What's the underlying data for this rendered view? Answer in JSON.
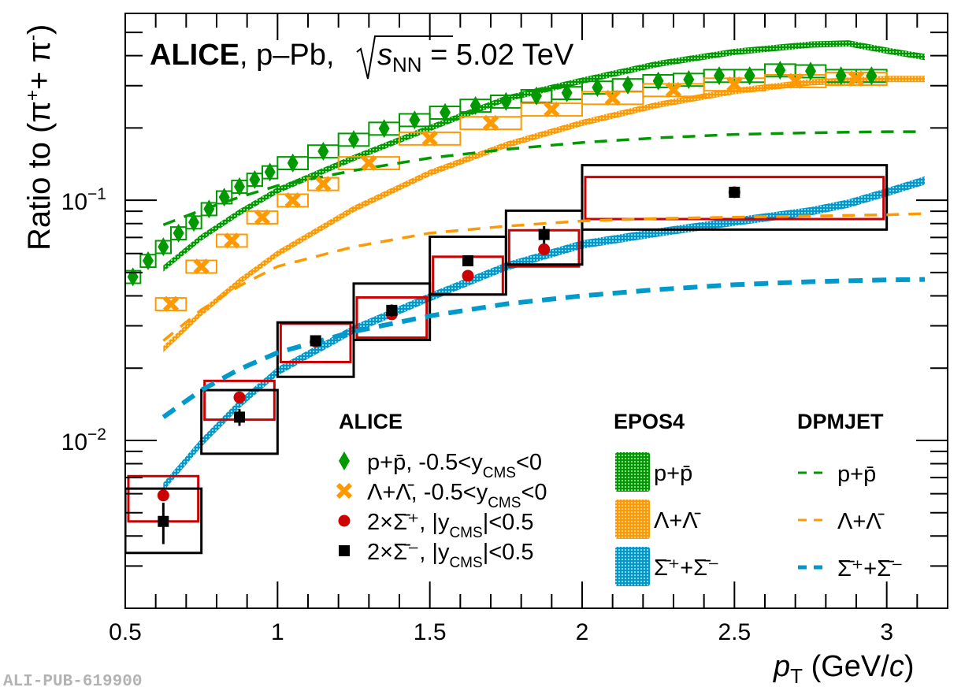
{
  "chart_data": {
    "type": "scatter",
    "title_bold": "ALICE",
    "title_rest": ", p–Pb, ",
    "title_energy_symbol": "s",
    "title_energy_sub": "NN",
    "title_energy_value": " = 5.02 TeV",
    "xlabel_main": "p",
    "xlabel_sub": "T",
    "xlabel_unit": " (GeV/",
    "xlabel_unit_c": "c",
    "xlabel_close": ")",
    "ylabel": "Ratio to (π",
    "ylabel_sup_plus": "+",
    "ylabel_mid": "+ π",
    "ylabel_sup_minus": "-",
    "ylabel_close": ")",
    "xlim": [
      0.5,
      3.2
    ],
    "ylim": [
      0.002,
      0.6
    ],
    "yscale": "log",
    "x_ticks": [
      "0.5",
      "1",
      "1.5",
      "2",
      "2.5",
      "3"
    ],
    "x_tick_values": [
      0.5,
      1,
      1.5,
      2,
      2.5,
      3
    ],
    "y_tick_base": "10",
    "y_ticks": [
      {
        "value": 0.1,
        "exp": "−1"
      },
      {
        "value": 0.01,
        "exp": "−2"
      }
    ],
    "watermark": "ALI-PUB-619900",
    "legend": {
      "alice": {
        "header": "ALICE",
        "items": [
          {
            "label": "p+p̄, -0.5<y",
            "sub": "CMS",
            "tail": "<0",
            "marker": "diamond",
            "color": "#009900"
          },
          {
            "label": "Λ+Λ̄, -0.5<y",
            "sub": "CMS",
            "tail": "<0",
            "marker": "cross",
            "color": "#ff9900"
          },
          {
            "label": "2×Σ̄⁺, |y",
            "sub": "CMS",
            "tail": "|<0.5",
            "marker": "circle",
            "color": "#cc0000"
          },
          {
            "label": "2×Σ̄⁻, |y",
            "sub": "CMS",
            "tail": "|<0.5",
            "marker": "square",
            "color": "#000000"
          }
        ]
      },
      "epos": {
        "header": "EPOS4",
        "items": [
          {
            "label": "p+p̄",
            "color": "#009900"
          },
          {
            "label": "Λ+Λ̄",
            "color": "#ff9900"
          },
          {
            "label": "Σ̄⁺+Σ̄⁻",
            "color": "#0099cc"
          }
        ]
      },
      "dpmjet": {
        "header": "DPMJET",
        "items": [
          {
            "label": "p+p̄",
            "color": "#009900"
          },
          {
            "label": "Λ+Λ̄",
            "color": "#ff9900"
          },
          {
            "label": "Σ̄⁺+Σ̄⁻",
            "color": "#0099cc"
          }
        ]
      }
    },
    "series": [
      {
        "name": "p+p̄",
        "kind": "data",
        "marker": "diamond",
        "color": "#009900",
        "x": [
          0.525,
          0.575,
          0.625,
          0.675,
          0.725,
          0.775,
          0.825,
          0.875,
          0.925,
          0.975,
          1.05,
          1.15,
          1.25,
          1.35,
          1.45,
          1.55,
          1.65,
          1.75,
          1.85,
          1.95,
          2.05,
          2.15,
          2.25,
          2.35,
          2.45,
          2.55,
          2.65,
          2.75,
          2.85,
          2.95
        ],
        "xw": [
          0.025,
          0.025,
          0.025,
          0.025,
          0.025,
          0.025,
          0.025,
          0.025,
          0.025,
          0.025,
          0.05,
          0.05,
          0.05,
          0.05,
          0.05,
          0.05,
          0.05,
          0.05,
          0.05,
          0.05,
          0.05,
          0.05,
          0.05,
          0.05,
          0.05,
          0.05,
          0.05,
          0.05,
          0.05,
          0.05
        ],
        "y": [
          0.048,
          0.056,
          0.064,
          0.073,
          0.081,
          0.092,
          0.103,
          0.114,
          0.122,
          0.131,
          0.143,
          0.16,
          0.179,
          0.199,
          0.216,
          0.232,
          0.248,
          0.258,
          0.272,
          0.28,
          0.295,
          0.302,
          0.314,
          0.318,
          0.33,
          0.33,
          0.348,
          0.345,
          0.33,
          0.33
        ],
        "syst": [
          0.06,
          0.06,
          0.06,
          0.06,
          0.06,
          0.06,
          0.06,
          0.06,
          0.06,
          0.06,
          0.06,
          0.06,
          0.06,
          0.06,
          0.06,
          0.06,
          0.06,
          0.06,
          0.06,
          0.06,
          0.06,
          0.06,
          0.06,
          0.06,
          0.06,
          0.06,
          0.06,
          0.06,
          0.06,
          0.06
        ]
      },
      {
        "name": "Λ+Λ̄",
        "kind": "data",
        "marker": "cross",
        "color": "#ff9900",
        "x": [
          0.65,
          0.75,
          0.85,
          0.95,
          1.05,
          1.15,
          1.3,
          1.5,
          1.7,
          1.9,
          2.1,
          2.3,
          2.5,
          2.7,
          2.9
        ],
        "xw": [
          0.05,
          0.05,
          0.05,
          0.05,
          0.05,
          0.05,
          0.1,
          0.1,
          0.1,
          0.1,
          0.1,
          0.1,
          0.1,
          0.1,
          0.1
        ],
        "y": [
          0.037,
          0.053,
          0.068,
          0.085,
          0.1,
          0.117,
          0.143,
          0.181,
          0.21,
          0.239,
          0.267,
          0.288,
          0.304,
          0.314,
          0.321
        ],
        "syst": [
          0.06,
          0.06,
          0.06,
          0.06,
          0.06,
          0.06,
          0.06,
          0.06,
          0.06,
          0.06,
          0.06,
          0.06,
          0.06,
          0.06,
          0.06
        ]
      },
      {
        "name": "2×Σ̄⁺",
        "kind": "data",
        "marker": "circle",
        "color": "#cc0000",
        "x": [
          0.625,
          0.875,
          1.125,
          1.375,
          1.625,
          1.875,
          2.5
        ],
        "xlo": [
          0.5,
          0.75,
          1.0,
          1.25,
          1.5,
          1.75,
          2.0
        ],
        "xhi": [
          0.75,
          1.0,
          1.25,
          1.5,
          1.75,
          2.0,
          3.0
        ],
        "y": [
          0.0059,
          0.0151,
          0.0258,
          0.0335,
          0.0485,
          0.0625,
          0.108
        ],
        "ylo": [
          0.0046,
          0.0122,
          0.0212,
          0.0268,
          0.0405,
          0.053,
          0.0835
        ],
        "yhi": [
          0.0071,
          0.0177,
          0.0306,
          0.0394,
          0.0582,
          0.075,
          0.125
        ]
      },
      {
        "name": "2×Σ̄⁻",
        "kind": "data",
        "marker": "square",
        "color": "#000000",
        "x": [
          0.625,
          0.875,
          1.125,
          1.375,
          1.625,
          1.875,
          2.5
        ],
        "xlo": [
          0.5,
          0.75,
          1.0,
          1.25,
          1.5,
          1.75,
          2.0
        ],
        "xhi": [
          0.75,
          1.0,
          1.25,
          1.5,
          1.75,
          2.0,
          3.0
        ],
        "y": [
          0.0046,
          0.0125,
          0.026,
          0.0348,
          0.056,
          0.072,
          0.108
        ],
        "err": [
          0.0009,
          0.001,
          0.001,
          0.002,
          0.002,
          0.006,
          0.005
        ],
        "ylo": [
          0.0034,
          0.0088,
          0.0184,
          0.0262,
          0.0405,
          0.054,
          0.0755
        ],
        "yhi": [
          0.0063,
          0.0162,
          0.031,
          0.045,
          0.0705,
          0.0905,
          0.14
        ]
      },
      {
        "name": "EPOS4 p+p̄",
        "kind": "band",
        "color": "#009900",
        "x": [
          0.625,
          0.75,
          0.875,
          1.0,
          1.25,
          1.5,
          1.75,
          2.0,
          2.25,
          2.5,
          2.75,
          2.875,
          3.0,
          3.125
        ],
        "y": [
          0.052,
          0.07,
          0.089,
          0.11,
          0.15,
          0.2,
          0.265,
          0.315,
          0.37,
          0.415,
          0.445,
          0.45,
          0.42,
          0.395
        ],
        "w": [
          0.03,
          0.03,
          0.03,
          0.03,
          0.03,
          0.03,
          0.03,
          0.03,
          0.03,
          0.03,
          0.03,
          0.03,
          0.03,
          0.03
        ]
      },
      {
        "name": "EPOS4 Λ+Λ̄",
        "kind": "band",
        "color": "#ff9900",
        "x": [
          0.625,
          0.75,
          0.875,
          1.0,
          1.25,
          1.5,
          1.75,
          2.0,
          2.25,
          2.5,
          2.75,
          3.0,
          3.125
        ],
        "y": [
          0.024,
          0.034,
          0.046,
          0.06,
          0.092,
          0.13,
          0.17,
          0.21,
          0.25,
          0.285,
          0.31,
          0.32,
          0.32
        ],
        "w": [
          0.03,
          0.03,
          0.03,
          0.03,
          0.03,
          0.03,
          0.03,
          0.03,
          0.03,
          0.03,
          0.03,
          0.03,
          0.03
        ]
      },
      {
        "name": "EPOS4 Σ̄⁺+Σ̄⁻",
        "kind": "band",
        "color": "#0099cc",
        "x": [
          0.625,
          0.75,
          0.875,
          1.0,
          1.25,
          1.5,
          1.75,
          2.0,
          2.25,
          2.5,
          2.75,
          2.875,
          3.0,
          3.125
        ],
        "y": [
          0.0064,
          0.0098,
          0.0142,
          0.0194,
          0.029,
          0.0395,
          0.053,
          0.0655,
          0.0735,
          0.0815,
          0.09,
          0.097,
          0.108,
          0.121
        ],
        "w": [
          0.04,
          0.04,
          0.04,
          0.04,
          0.04,
          0.04,
          0.04,
          0.04,
          0.04,
          0.04,
          0.04,
          0.04,
          0.04,
          0.04
        ]
      },
      {
        "name": "DPMJET p+p̄",
        "kind": "dashed",
        "color": "#009900",
        "x": [
          0.625,
          0.75,
          0.875,
          1.0,
          1.25,
          1.5,
          1.75,
          2.0,
          2.25,
          2.5,
          2.75,
          3.0,
          3.125
        ],
        "y": [
          0.079,
          0.091,
          0.103,
          0.115,
          0.133,
          0.15,
          0.163,
          0.174,
          0.182,
          0.188,
          0.191,
          0.193,
          0.193
        ]
      },
      {
        "name": "DPMJET Λ+Λ̄",
        "kind": "dashed",
        "color": "#ff9900",
        "x": [
          0.625,
          0.75,
          0.875,
          1.0,
          1.25,
          1.5,
          1.75,
          2.0,
          2.25,
          2.5,
          2.75,
          3.0,
          3.125
        ],
        "y": [
          0.026,
          0.035,
          0.044,
          0.053,
          0.064,
          0.073,
          0.078,
          0.082,
          0.084,
          0.085,
          0.086,
          0.087,
          0.088
        ]
      },
      {
        "name": "DPMJET Σ̄⁺+Σ̄⁻",
        "kind": "dashed-thick",
        "color": "#0099cc",
        "x": [
          0.625,
          0.75,
          0.875,
          1.0,
          1.25,
          1.5,
          1.75,
          2.0,
          2.25,
          2.5,
          2.75,
          3.0,
          3.125
        ],
        "y": [
          0.0125,
          0.0162,
          0.0198,
          0.0232,
          0.0284,
          0.033,
          0.037,
          0.04,
          0.0425,
          0.0445,
          0.0458,
          0.0466,
          0.0468
        ]
      }
    ]
  }
}
